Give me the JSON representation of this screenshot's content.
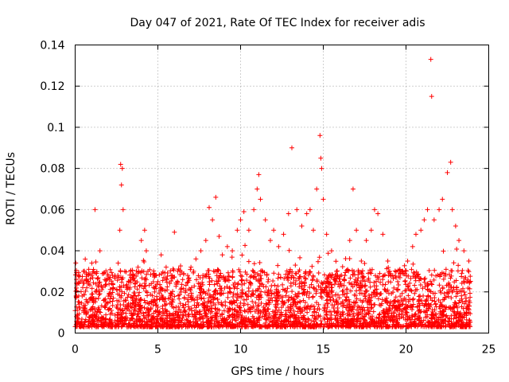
{
  "chart_data": {
    "type": "scatter",
    "title": "Day 047 of 2021, Rate Of TEC Index for receiver adis",
    "xlabel": "GPS time / hours",
    "ylabel": "ROTI / TECUs",
    "xlim": [
      0,
      25
    ],
    "ylim": [
      0,
      0.14
    ],
    "xticks": [
      0,
      5,
      10,
      15,
      20,
      25
    ],
    "xtick_labels": [
      "0",
      "5",
      "10",
      "15",
      "20",
      "25"
    ],
    "yticks": [
      0,
      0.02,
      0.04,
      0.06,
      0.08,
      0.1,
      0.12,
      0.14
    ],
    "ytick_labels": [
      "0",
      "0.02",
      "0.04",
      "0.06",
      "0.08",
      "0.1",
      "0.12",
      "0.14"
    ],
    "grid": true,
    "marker": "+",
    "color": "#ff0000",
    "series": [
      {
        "name": "ROTI",
        "x": [
          0.1,
          0.3,
          0.5,
          0.7,
          1.0,
          1.2,
          1.3,
          1.5,
          1.8,
          2.0,
          2.2,
          2.4,
          2.6,
          2.7,
          2.75,
          2.8,
          2.85,
          2.9,
          3.0,
          3.2,
          3.5,
          3.8,
          4.0,
          4.2,
          4.3,
          4.4,
          4.6,
          4.9,
          5.2,
          5.5,
          5.8,
          6.0,
          6.2,
          6.5,
          6.8,
          7.0,
          7.3,
          7.6,
          7.9,
          8.1,
          8.3,
          8.5,
          8.7,
          8.9,
          9.2,
          9.5,
          9.8,
          10.0,
          10.2,
          10.5,
          10.8,
          11.0,
          11.1,
          11.2,
          11.5,
          11.8,
          12.0,
          12.3,
          12.6,
          12.9,
          13.1,
          13.4,
          13.7,
          14.0,
          14.2,
          14.4,
          14.6,
          14.8,
          14.85,
          14.9,
          15.0,
          15.2,
          15.5,
          15.8,
          16.0,
          16.3,
          16.6,
          16.8,
          17.0,
          17.3,
          17.6,
          17.9,
          18.1,
          18.3,
          18.6,
          18.9,
          19.2,
          19.5,
          19.8,
          20.1,
          20.4,
          20.6,
          20.9,
          21.1,
          21.3,
          21.5,
          21.55,
          21.7,
          22.0,
          22.2,
          22.5,
          22.7,
          22.8,
          23.0,
          23.2,
          23.5,
          23.8
        ],
        "y": [
          0.018,
          0.025,
          0.03,
          0.022,
          0.028,
          0.06,
          0.021,
          0.04,
          0.026,
          0.018,
          0.024,
          0.028,
          0.034,
          0.05,
          0.082,
          0.072,
          0.08,
          0.06,
          0.03,
          0.022,
          0.028,
          0.032,
          0.045,
          0.05,
          0.04,
          0.03,
          0.024,
          0.028,
          0.038,
          0.032,
          0.028,
          0.049,
          0.03,
          0.026,
          0.028,
          0.032,
          0.036,
          0.04,
          0.045,
          0.061,
          0.055,
          0.066,
          0.047,
          0.038,
          0.042,
          0.04,
          0.05,
          0.055,
          0.059,
          0.05,
          0.06,
          0.07,
          0.077,
          0.065,
          0.055,
          0.045,
          0.05,
          0.042,
          0.048,
          0.058,
          0.09,
          0.06,
          0.052,
          0.058,
          0.06,
          0.05,
          0.07,
          0.096,
          0.085,
          0.08,
          0.065,
          0.048,
          0.04,
          0.03,
          0.025,
          0.028,
          0.045,
          0.07,
          0.05,
          0.035,
          0.045,
          0.05,
          0.06,
          0.058,
          0.048,
          0.035,
          0.028,
          0.025,
          0.03,
          0.035,
          0.042,
          0.048,
          0.05,
          0.055,
          0.06,
          0.133,
          0.115,
          0.055,
          0.06,
          0.065,
          0.078,
          0.083,
          0.06,
          0.052,
          0.045,
          0.04,
          0.035
        ]
      }
    ]
  }
}
